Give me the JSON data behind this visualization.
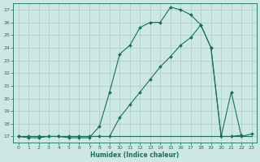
{
  "xlabel": "Humidex (Indice chaleur)",
  "bg_color": "#cde8e4",
  "grid_color": "#a8ccc8",
  "line_color": "#1a6e5e",
  "xlim": [
    -0.5,
    23.5
  ],
  "ylim": [
    16.5,
    27.5
  ],
  "xticks": [
    0,
    1,
    2,
    3,
    4,
    5,
    6,
    7,
    8,
    9,
    10,
    11,
    12,
    13,
    14,
    15,
    16,
    17,
    18,
    19,
    20,
    21,
    22,
    23
  ],
  "yticks": [
    17,
    18,
    19,
    20,
    21,
    22,
    23,
    24,
    25,
    26,
    27
  ],
  "line1_x": [
    0,
    1,
    2,
    3,
    4,
    5,
    6,
    7,
    8,
    9,
    10,
    11,
    12,
    13,
    14,
    15,
    16,
    17,
    18,
    19,
    20,
    21,
    22
  ],
  "line1_y": [
    17,
    16.9,
    16.9,
    17.0,
    17.0,
    16.9,
    16.9,
    16.9,
    17.8,
    20.5,
    23.5,
    24.2,
    25.6,
    26.0,
    26.0,
    27.2,
    27.0,
    26.6,
    25.8,
    24.0,
    17.0,
    17.0,
    17.1
  ],
  "line2_x": [
    0,
    1,
    2,
    3,
    4,
    5,
    6,
    7,
    8,
    9,
    10,
    11,
    12,
    13,
    14,
    15,
    16,
    17,
    18,
    19,
    20,
    21,
    22,
    23
  ],
  "line2_y": [
    17,
    17,
    17,
    17,
    17,
    17,
    17,
    17,
    17,
    17,
    17,
    17,
    17,
    17,
    17,
    17,
    17,
    17,
    17,
    17,
    17,
    17,
    17,
    17
  ],
  "line3_x": [
    0,
    1,
    2,
    3,
    4,
    5,
    6,
    7,
    8,
    9,
    10,
    11,
    12,
    13,
    14,
    15,
    16,
    17,
    18,
    19,
    20,
    21,
    22,
    23
  ],
  "line3_y": [
    17,
    17,
    17,
    17,
    17,
    17,
    17,
    17,
    17,
    17.0,
    18.5,
    19.5,
    20.5,
    21.5,
    22.5,
    23.3,
    24.2,
    24.8,
    25.8,
    24.0,
    17.0,
    20.5,
    17.0,
    17.2
  ]
}
